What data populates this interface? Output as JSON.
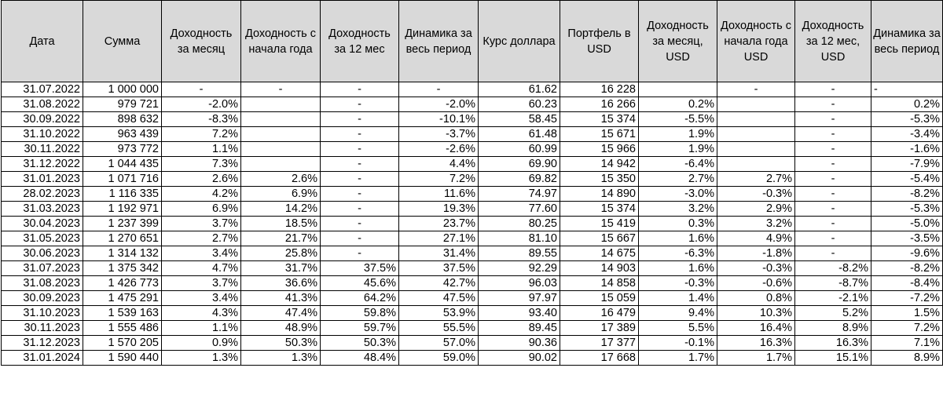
{
  "headers": [
    "Дата",
    "Сумма",
    "Доходность за месяц",
    "Доходность с начала года",
    "Доходность за 12 мес",
    "Динамика за весь период",
    "Курс доллара",
    "Портфель в USD",
    "Доходность за месяц, USD",
    "Доходность с начала года USD",
    "Доходность за 12 мес, USD",
    "Динамика за весь период"
  ],
  "rows": [
    [
      "31.07.2022",
      "1 000 000",
      "-",
      "-",
      "-",
      "-",
      "61.62",
      "16 228",
      "",
      "-",
      "-",
      "-"
    ],
    [
      "31.08.2022",
      "979 721",
      "-2.0%",
      "",
      "-",
      "-2.0%",
      "60.23",
      "16 266",
      "0.2%",
      "",
      "-",
      "0.2%"
    ],
    [
      "30.09.2022",
      "898 632",
      "-8.3%",
      "",
      "-",
      "-10.1%",
      "58.45",
      "15 374",
      "-5.5%",
      "",
      "-",
      "-5.3%"
    ],
    [
      "31.10.2022",
      "963 439",
      "7.2%",
      "",
      "-",
      "-3.7%",
      "61.48",
      "15 671",
      "1.9%",
      "",
      "-",
      "-3.4%"
    ],
    [
      "30.11.2022",
      "973 772",
      "1.1%",
      "",
      "-",
      "-2.6%",
      "60.99",
      "15 966",
      "1.9%",
      "",
      "-",
      "-1.6%"
    ],
    [
      "31.12.2022",
      "1 044 435",
      "7.3%",
      "",
      "-",
      "4.4%",
      "69.90",
      "14 942",
      "-6.4%",
      "",
      "-",
      "-7.9%"
    ],
    [
      "31.01.2023",
      "1 071 716",
      "2.6%",
      "2.6%",
      "-",
      "7.2%",
      "69.82",
      "15 350",
      "2.7%",
      "2.7%",
      "-",
      "-5.4%"
    ],
    [
      "28.02.2023",
      "1 116 335",
      "4.2%",
      "6.9%",
      "-",
      "11.6%",
      "74.97",
      "14 890",
      "-3.0%",
      "-0.3%",
      "-",
      "-8.2%"
    ],
    [
      "31.03.2023",
      "1 192 971",
      "6.9%",
      "14.2%",
      "-",
      "19.3%",
      "77.60",
      "15 374",
      "3.2%",
      "2.9%",
      "-",
      "-5.3%"
    ],
    [
      "30.04.2023",
      "1 237 399",
      "3.7%",
      "18.5%",
      "-",
      "23.7%",
      "80.25",
      "15 419",
      "0.3%",
      "3.2%",
      "-",
      "-5.0%"
    ],
    [
      "31.05.2023",
      "1 270 651",
      "2.7%",
      "21.7%",
      "-",
      "27.1%",
      "81.10",
      "15 667",
      "1.6%",
      "4.9%",
      "-",
      "-3.5%"
    ],
    [
      "30.06.2023",
      "1 314 132",
      "3.4%",
      "25.8%",
      "-",
      "31.4%",
      "89.55",
      "14 675",
      "-6.3%",
      "-1.8%",
      "-",
      "-9.6%"
    ],
    [
      "31.07.2023",
      "1 375 342",
      "4.7%",
      "31.7%",
      "37.5%",
      "37.5%",
      "92.29",
      "14 903",
      "1.6%",
      "-0.3%",
      "-8.2%",
      "-8.2%"
    ],
    [
      "31.08.2023",
      "1 426 773",
      "3.7%",
      "36.6%",
      "45.6%",
      "42.7%",
      "96.03",
      "14 858",
      "-0.3%",
      "-0.6%",
      "-8.7%",
      "-8.4%"
    ],
    [
      "30.09.2023",
      "1 475 291",
      "3.4%",
      "41.3%",
      "64.2%",
      "47.5%",
      "97.97",
      "15 059",
      "1.4%",
      "0.8%",
      "-2.1%",
      "-7.2%"
    ],
    [
      "31.10.2023",
      "1 539 163",
      "4.3%",
      "47.4%",
      "59.8%",
      "53.9%",
      "93.40",
      "16 479",
      "9.4%",
      "10.3%",
      "5.2%",
      "1.5%"
    ],
    [
      "30.11.2023",
      "1 555 486",
      "1.1%",
      "48.9%",
      "59.7%",
      "55.5%",
      "89.45",
      "17 389",
      "5.5%",
      "16.4%",
      "8.9%",
      "7.2%"
    ],
    [
      "31.12.2023",
      "1 570 205",
      "0.9%",
      "50.3%",
      "50.3%",
      "57.0%",
      "90.36",
      "17 377",
      "-0.1%",
      "16.3%",
      "16.3%",
      "7.1%"
    ],
    [
      "31.01.2024",
      "1 590 440",
      "1.3%",
      "1.3%",
      "48.4%",
      "59.0%",
      "90.02",
      "17 668",
      "1.7%",
      "1.7%",
      "15.1%",
      "8.9%"
    ]
  ]
}
